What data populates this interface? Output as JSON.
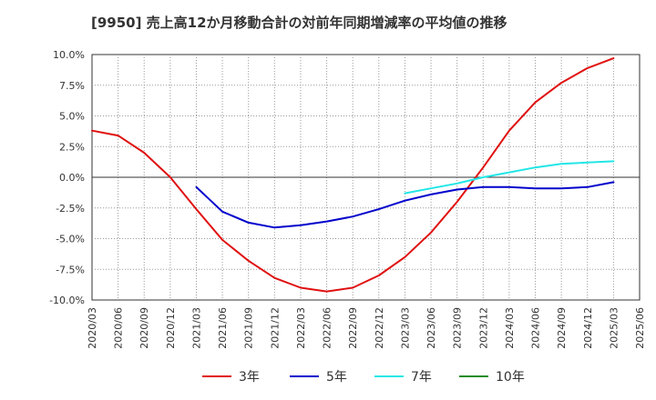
{
  "chart_data": {
    "type": "line",
    "title": "[9950]  売上高12か月移動合計の対前年同期増減率の平均値の推移",
    "xlabel": "",
    "ylabel": "",
    "ylim": [
      -10,
      10
    ],
    "y_ticks": [
      {
        "value": 10,
        "label": "10.0%"
      },
      {
        "value": 7.5,
        "label": "7.5%"
      },
      {
        "value": 5,
        "label": "5.0%"
      },
      {
        "value": 2.5,
        "label": "2.5%"
      },
      {
        "value": 0,
        "label": "0.0%"
      },
      {
        "value": -2.5,
        "label": "-2.5%"
      },
      {
        "value": -5,
        "label": "-5.0%"
      },
      {
        "value": -7.5,
        "label": "-7.5%"
      },
      {
        "value": -10,
        "label": "-10.0%"
      }
    ],
    "x": [
      "2020/03",
      "2020/06",
      "2020/09",
      "2020/12",
      "2021/03",
      "2021/06",
      "2021/09",
      "2021/12",
      "2022/03",
      "2022/06",
      "2022/09",
      "2022/12",
      "2023/03",
      "2023/06",
      "2023/09",
      "2023/12",
      "2024/03",
      "2024/06",
      "2024/09",
      "2024/12",
      "2025/03",
      "2025/06"
    ],
    "grid": true,
    "legend_position": "bottom",
    "series": [
      {
        "name": "3年",
        "color": "#e01010",
        "values": [
          3.8,
          3.4,
          2.0,
          0.0,
          -2.6,
          -5.1,
          -6.8,
          -8.2,
          -9.0,
          -9.3,
          -9.0,
          -8.0,
          -6.5,
          -4.5,
          -2.0,
          0.8,
          3.8,
          6.1,
          7.7,
          8.9,
          9.7,
          null
        ]
      },
      {
        "name": "5年",
        "color": "#0000cc",
        "values": [
          null,
          null,
          null,
          null,
          -0.8,
          -2.8,
          -3.7,
          -4.1,
          -3.9,
          -3.6,
          -3.2,
          -2.6,
          -1.9,
          -1.4,
          -1.0,
          -0.8,
          -0.8,
          -0.9,
          -0.9,
          -0.8,
          -0.4,
          null
        ]
      },
      {
        "name": "7年",
        "color": "#22e6e6",
        "values": [
          null,
          null,
          null,
          null,
          null,
          null,
          null,
          null,
          null,
          null,
          null,
          null,
          -1.3,
          -0.9,
          -0.5,
          0.0,
          0.4,
          0.8,
          1.1,
          1.2,
          1.3,
          null
        ]
      },
      {
        "name": "10年",
        "color": "#228b22",
        "values": [
          null,
          null,
          null,
          null,
          null,
          null,
          null,
          null,
          null,
          null,
          null,
          null,
          null,
          null,
          null,
          null,
          null,
          null,
          null,
          null,
          null,
          null
        ]
      }
    ]
  }
}
